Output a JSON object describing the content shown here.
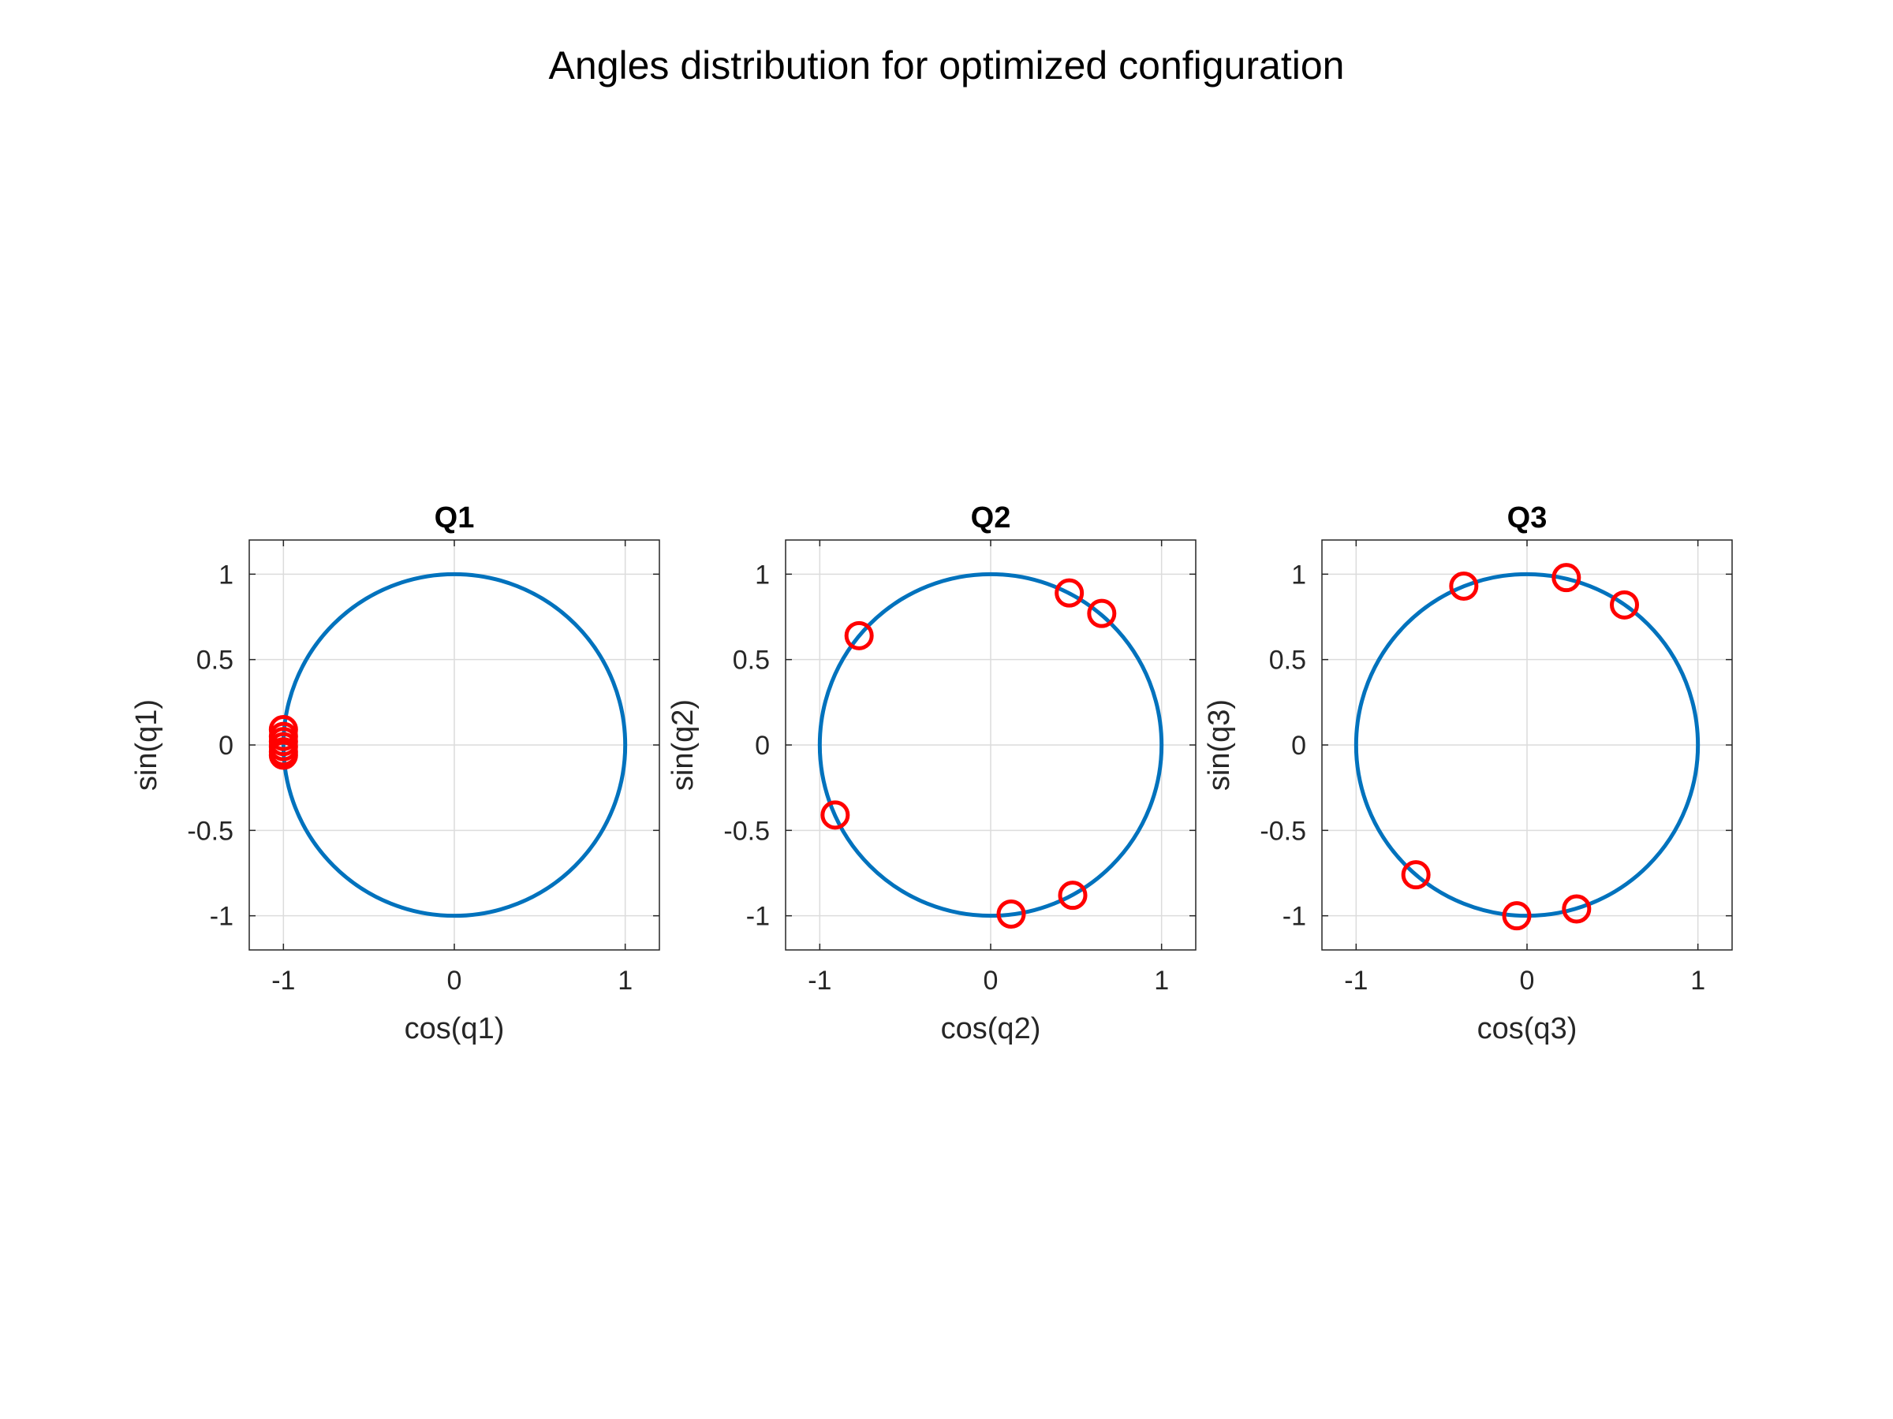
{
  "figure": {
    "suptitle": "Angles distribution for optimized configuration"
  },
  "colors": {
    "circle": "#0072BD",
    "markers": "#FF0000",
    "grid": "#DCDCDC",
    "axes": "#262626"
  },
  "chart_data": [
    {
      "type": "scatter",
      "title": "Q1",
      "xlabel": "cos(q1)",
      "ylabel": "sin(q1)",
      "xlim": [
        -1.2,
        1.2
      ],
      "ylim": [
        -1.2,
        1.2
      ],
      "xticks": [
        -1,
        0,
        1
      ],
      "yticks": [
        -1,
        -0.5,
        0,
        0.5,
        1
      ],
      "xtick_labels": [
        "-1",
        "0",
        "1"
      ],
      "ytick_labels": [
        "-1",
        "-0.5",
        "0",
        "0.5",
        "1"
      ],
      "grid": true,
      "series": [
        {
          "kind": "line",
          "shape": "unit-circle"
        },
        {
          "kind": "markers",
          "marker": "circle",
          "x": [
            -1.0,
            -1.0,
            -1.0,
            -1.0,
            -1.0,
            -1.0
          ],
          "y": [
            0.09,
            0.05,
            0.02,
            -0.01,
            -0.04,
            -0.06
          ]
        }
      ]
    },
    {
      "type": "scatter",
      "title": "Q2",
      "xlabel": "cos(q2)",
      "ylabel": "sin(q2)",
      "xlim": [
        -1.2,
        1.2
      ],
      "ylim": [
        -1.2,
        1.2
      ],
      "xticks": [
        -1,
        0,
        1
      ],
      "yticks": [
        -1,
        -0.5,
        0,
        0.5,
        1
      ],
      "xtick_labels": [
        "-1",
        "0",
        "1"
      ],
      "ytick_labels": [
        "-1",
        "-0.5",
        "0",
        "0.5",
        "1"
      ],
      "grid": true,
      "series": [
        {
          "kind": "line",
          "shape": "unit-circle"
        },
        {
          "kind": "markers",
          "marker": "circle",
          "x": [
            -0.77,
            -0.91,
            0.46,
            0.65,
            0.12,
            0.48
          ],
          "y": [
            0.64,
            -0.41,
            0.89,
            0.77,
            -0.99,
            -0.88
          ]
        }
      ]
    },
    {
      "type": "scatter",
      "title": "Q3",
      "xlabel": "cos(q3)",
      "ylabel": "sin(q3)",
      "xlim": [
        -1.2,
        1.2
      ],
      "ylim": [
        -1.2,
        1.2
      ],
      "xticks": [
        -1,
        0,
        1
      ],
      "yticks": [
        -1,
        -0.5,
        0,
        0.5,
        1
      ],
      "xtick_labels": [
        "-1",
        "0",
        "1"
      ],
      "ytick_labels": [
        "-1",
        "-0.5",
        "0",
        "0.5",
        "1"
      ],
      "grid": true,
      "series": [
        {
          "kind": "line",
          "shape": "unit-circle"
        },
        {
          "kind": "markers",
          "marker": "circle",
          "x": [
            -0.37,
            0.23,
            0.57,
            -0.65,
            -0.06,
            0.29
          ],
          "y": [
            0.93,
            0.98,
            0.82,
            -0.76,
            -1.0,
            -0.96
          ]
        }
      ]
    }
  ]
}
